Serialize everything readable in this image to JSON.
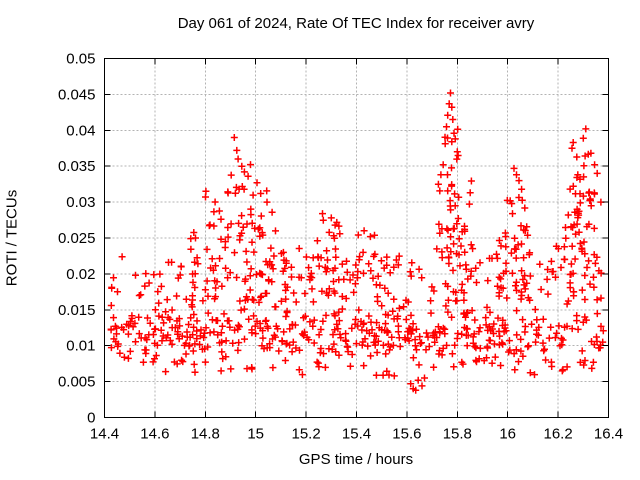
{
  "page": {
    "background": "#ffffff"
  },
  "chart_data": {
    "type": "scatter",
    "title": "Day 061 of 2024, Rate Of TEC Index for receiver avry",
    "xlabel": "GPS time / hours",
    "ylabel": "ROTI / TECUs",
    "xlim": [
      14.4,
      16.4
    ],
    "ylim": [
      0,
      0.05
    ],
    "x_tick_values": [
      14.4,
      14.6,
      14.8,
      15,
      15.2,
      15.4,
      15.6,
      15.8,
      16,
      16.2,
      16.4
    ],
    "x_tick_labels": [
      "14.4",
      "14.6",
      "14.8",
      "15",
      "15.2",
      "15.4",
      "15.6",
      "15.8",
      "16",
      "16.2",
      "16.4"
    ],
    "y_tick_values": [
      0,
      0.005,
      0.01,
      0.015,
      0.02,
      0.025,
      0.03,
      0.035,
      0.04,
      0.045,
      0.05
    ],
    "y_tick_labels": [
      "0",
      "0.005",
      "0.01",
      "0.015",
      "0.02",
      "0.025",
      "0.03",
      "0.035",
      "0.04",
      "0.045",
      "0.05"
    ],
    "grid": true,
    "legend": "none",
    "marker": {
      "shape": "plus",
      "size": 7,
      "color": "#ff0000",
      "stroke_width": 1.5
    },
    "colors": {
      "marker": "#ff0000",
      "grid": "#b3b3b3",
      "axis": "#000000",
      "background": "#ffffff",
      "text": "#000000"
    },
    "notable_points": [
      [
        14.47,
        0.0224
      ],
      [
        14.915,
        0.039
      ],
      [
        14.925,
        0.0372
      ],
      [
        14.93,
        0.036
      ],
      [
        14.945,
        0.035
      ],
      [
        14.955,
        0.0342
      ],
      [
        14.97,
        0.0336
      ],
      [
        15.005,
        0.0327
      ],
      [
        15.02,
        0.0312
      ],
      [
        15.045,
        0.03
      ],
      [
        15.065,
        0.0286
      ],
      [
        15.265,
        0.0284
      ],
      [
        15.3,
        0.0278
      ],
      [
        15.315,
        0.0268
      ],
      [
        15.43,
        0.026
      ],
      [
        15.455,
        0.0252
      ],
      [
        15.55,
        0.0058
      ],
      [
        15.615,
        0.0047
      ],
      [
        15.625,
        0.004
      ],
      [
        15.635,
        0.0038
      ],
      [
        15.645,
        0.0052
      ],
      [
        15.66,
        0.0044
      ],
      [
        15.67,
        0.0055
      ],
      [
        15.773,
        0.0452
      ],
      [
        15.768,
        0.0437
      ],
      [
        15.778,
        0.0432
      ],
      [
        15.762,
        0.0421
      ],
      [
        15.782,
        0.0415
      ],
      [
        15.757,
        0.0405
      ],
      [
        15.787,
        0.0396
      ],
      [
        15.792,
        0.0388
      ],
      [
        15.8,
        0.037
      ],
      [
        15.744,
        0.0352
      ],
      [
        15.735,
        0.0338
      ],
      [
        15.725,
        0.0325
      ],
      [
        16.01,
        0.0302
      ],
      [
        16.025,
        0.0347
      ],
      [
        16.035,
        0.0338
      ],
      [
        16.045,
        0.033
      ],
      [
        16.055,
        0.0318
      ],
      [
        16.255,
        0.0375
      ],
      [
        16.26,
        0.0383
      ],
      [
        16.3,
        0.0389
      ],
      [
        16.31,
        0.0402
      ],
      [
        16.33,
        0.0368
      ],
      [
        16.345,
        0.0352
      ],
      [
        16.355,
        0.034
      ],
      [
        16.37,
        0.03
      ]
    ],
    "seed": 7,
    "clusters": [
      {
        "n": 460,
        "x": [
          14.425,
          16.38
        ],
        "y": [
          0.0055,
          0.0175
        ],
        "dist": "normal"
      },
      {
        "n": 120,
        "x": [
          14.425,
          16.38
        ],
        "y": [
          0.016,
          0.0225
        ],
        "dist": "uniform"
      },
      {
        "n": 30,
        "x": [
          14.425,
          16.38
        ],
        "y": [
          0.0058,
          0.0078
        ],
        "dist": "uniform"
      },
      {
        "n": 50,
        "x": [
          14.72,
          15.08
        ],
        "y": [
          0.016,
          0.027
        ],
        "dist": "uniform"
      },
      {
        "n": 25,
        "x": [
          14.8,
          15.06
        ],
        "y": [
          0.024,
          0.032
        ],
        "dist": "uniform"
      },
      {
        "n": 10,
        "x": [
          14.86,
          15.0
        ],
        "y": [
          0.029,
          0.0355
        ],
        "dist": "uniform"
      },
      {
        "n": 35,
        "x": [
          15.1,
          15.38
        ],
        "y": [
          0.016,
          0.024
        ],
        "dist": "uniform"
      },
      {
        "n": 12,
        "x": [
          15.24,
          15.35
        ],
        "y": [
          0.022,
          0.0275
        ],
        "dist": "uniform"
      },
      {
        "n": 20,
        "x": [
          15.38,
          15.56
        ],
        "y": [
          0.017,
          0.0255
        ],
        "dist": "uniform"
      },
      {
        "n": 40,
        "x": [
          15.7,
          15.9
        ],
        "y": [
          0.016,
          0.028
        ],
        "dist": "uniform"
      },
      {
        "n": 20,
        "x": [
          15.73,
          15.87
        ],
        "y": [
          0.026,
          0.034
        ],
        "dist": "uniform"
      },
      {
        "n": 8,
        "x": [
          15.75,
          15.81
        ],
        "y": [
          0.033,
          0.0405
        ],
        "dist": "uniform"
      },
      {
        "n": 30,
        "x": [
          15.94,
          16.1
        ],
        "y": [
          0.016,
          0.026
        ],
        "dist": "uniform"
      },
      {
        "n": 14,
        "x": [
          15.99,
          16.08
        ],
        "y": [
          0.024,
          0.031
        ],
        "dist": "uniform"
      },
      {
        "n": 40,
        "x": [
          16.18,
          16.375
        ],
        "y": [
          0.016,
          0.027
        ],
        "dist": "uniform"
      },
      {
        "n": 25,
        "x": [
          16.22,
          16.36
        ],
        "y": [
          0.025,
          0.0325
        ],
        "dist": "uniform"
      },
      {
        "n": 10,
        "x": [
          16.25,
          16.33
        ],
        "y": [
          0.031,
          0.037
        ],
        "dist": "uniform"
      }
    ]
  }
}
